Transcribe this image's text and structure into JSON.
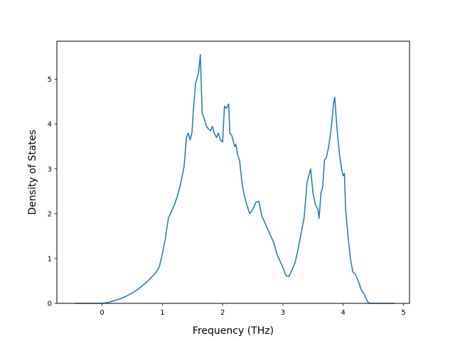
{
  "chart_data": {
    "type": "line",
    "title": "",
    "xlabel": "Frequency (THz)",
    "ylabel": "Density of States",
    "xlim": [
      -0.75,
      5.1
    ],
    "ylim": [
      0,
      5.85
    ],
    "xticks": [
      0,
      1,
      2,
      3,
      4,
      5
    ],
    "yticks": [
      0,
      1,
      2,
      3,
      4,
      5
    ],
    "grid": false,
    "series": [
      {
        "name": "",
        "color": "#1f77b4",
        "x": [
          -0.45,
          -0.2,
          0.0,
          0.1,
          0.2,
          0.3,
          0.4,
          0.5,
          0.6,
          0.7,
          0.8,
          0.9,
          0.95,
          1.0,
          1.05,
          1.1,
          1.15,
          1.2,
          1.25,
          1.3,
          1.33,
          1.36,
          1.4,
          1.43,
          1.46,
          1.49,
          1.52,
          1.55,
          1.6,
          1.63,
          1.66,
          1.7,
          1.73,
          1.76,
          1.8,
          1.83,
          1.86,
          1.9,
          1.93,
          1.96,
          2.0,
          2.03,
          2.06,
          2.1,
          2.12,
          2.15,
          2.18,
          2.2,
          2.22,
          2.25,
          2.28,
          2.32,
          2.36,
          2.4,
          2.45,
          2.5,
          2.55,
          2.6,
          2.65,
          2.7,
          2.75,
          2.8,
          2.85,
          2.9,
          2.95,
          3.0,
          3.05,
          3.1,
          3.15,
          3.2,
          3.25,
          3.3,
          3.35,
          3.37,
          3.4,
          3.43,
          3.46,
          3.5,
          3.54,
          3.58,
          3.6,
          3.63,
          3.66,
          3.69,
          3.72,
          3.76,
          3.8,
          3.84,
          3.86,
          3.9,
          3.94,
          3.98,
          4.0,
          4.02,
          4.04,
          4.08,
          4.12,
          4.16,
          4.2,
          4.25,
          4.3,
          4.35,
          4.4,
          4.43,
          4.5,
          4.6,
          4.7,
          4.85
        ],
        "y": [
          0.0,
          0.0,
          0.0,
          0.02,
          0.06,
          0.1,
          0.16,
          0.23,
          0.32,
          0.43,
          0.55,
          0.7,
          0.82,
          1.1,
          1.45,
          1.9,
          2.05,
          2.2,
          2.4,
          2.65,
          2.85,
          3.05,
          3.7,
          3.8,
          3.65,
          3.8,
          4.4,
          4.9,
          5.15,
          5.55,
          4.25,
          4.1,
          3.95,
          3.9,
          3.85,
          3.95,
          3.8,
          3.7,
          3.8,
          3.65,
          3.6,
          4.4,
          4.35,
          4.45,
          3.8,
          3.75,
          3.6,
          3.5,
          3.55,
          3.3,
          3.2,
          2.7,
          2.4,
          2.2,
          2.0,
          2.1,
          2.25,
          2.28,
          1.95,
          1.8,
          1.65,
          1.5,
          1.35,
          1.1,
          0.95,
          0.8,
          0.62,
          0.6,
          0.75,
          0.9,
          1.2,
          1.55,
          1.9,
          2.2,
          2.7,
          2.85,
          3.0,
          2.45,
          2.2,
          2.1,
          1.9,
          2.45,
          2.6,
          3.2,
          3.25,
          3.5,
          3.9,
          4.45,
          4.6,
          3.85,
          3.3,
          2.95,
          2.85,
          2.9,
          2.1,
          1.5,
          1.0,
          0.7,
          0.65,
          0.5,
          0.3,
          0.2,
          0.05,
          0.0,
          0.0,
          0.0,
          0.0,
          0.0
        ]
      }
    ]
  }
}
